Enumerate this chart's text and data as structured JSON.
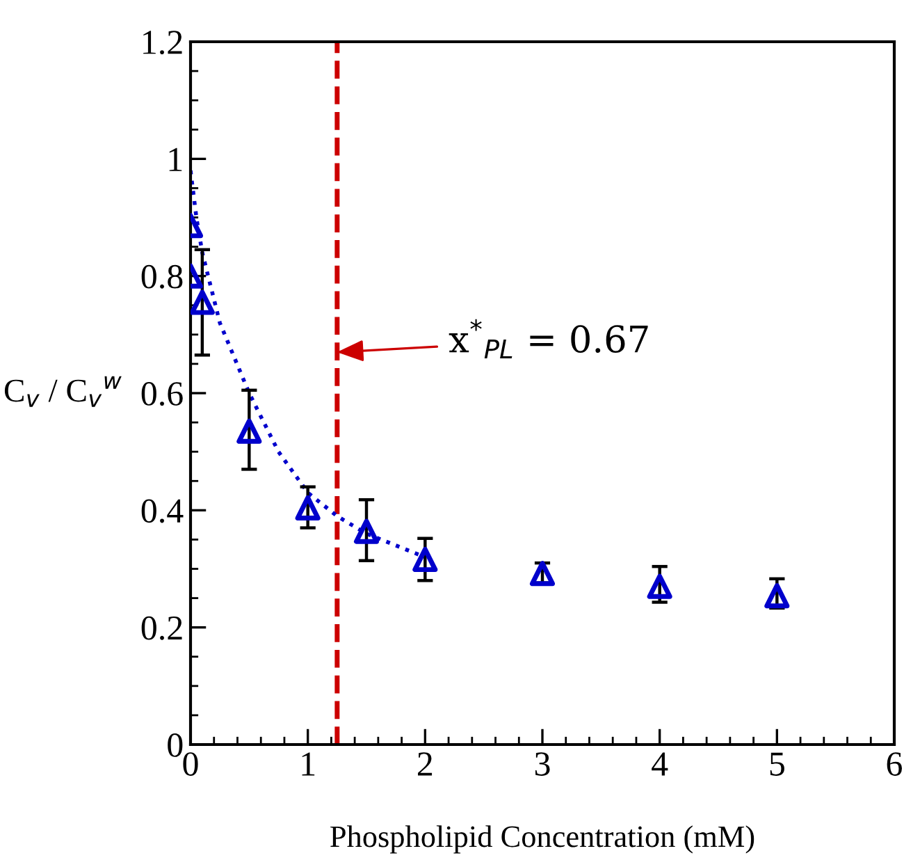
{
  "chart_data": {
    "type": "scatter",
    "xlabel": "Phospholipid Concentration (mM)",
    "ylabel": "C$_{v}$ / C$_{v}$$^{w}$",
    "xlim": [
      0,
      6
    ],
    "xticks": [
      0,
      1,
      2,
      3,
      4,
      5,
      6
    ],
    "ylim": [
      0,
      1.2
    ],
    "yticks": [
      0,
      0.2,
      0.4,
      0.6,
      0.8,
      1,
      1.2
    ],
    "grid": false,
    "legend": false,
    "series": [
      {
        "color": "#0000cc",
        "marker": "triangle",
        "x": [
          0,
          0,
          0.1,
          0.5,
          1,
          1.5,
          2,
          3,
          4,
          5
        ],
        "values": [
          0.886,
          0.8,
          0.755,
          0.535,
          0.404,
          0.364,
          0.316,
          0.292,
          0.27,
          0.254
        ],
        "errors": [
          null,
          null,
          [
            0.665,
            0.845
          ],
          [
            0.47,
            0.605
          ],
          [
            0.37,
            0.44
          ],
          [
            0.314,
            0.418
          ],
          [
            0.28,
            0.352
          ],
          [
            0.276,
            0.31
          ],
          [
            0.243,
            0.304
          ],
          [
            0.233,
            0.283
          ]
        ]
      },
      {
        "type": "line",
        "color": "#0000cc",
        "line_style": "dotted",
        "marker": "none",
        "x": [
          0,
          0.05,
          0.1,
          0.25,
          0.5,
          0.75,
          1,
          1.25,
          1.5,
          1.75,
          2
        ],
        "values": [
          0.98,
          0.9,
          0.84,
          0.72,
          0.6,
          0.5,
          0.43,
          0.39,
          0.36,
          0.34,
          0.32
        ]
      }
    ],
    "ref_lines": [
      {
        "axis": "x",
        "value": 1.25,
        "color": "#cc0000",
        "line_style": "dashed"
      }
    ],
    "annotations": [
      {
        "text": "x$^{*}$$_{PL}$ = 0.67",
        "x": 1.25,
        "y": 0.67
      }
    ]
  }
}
